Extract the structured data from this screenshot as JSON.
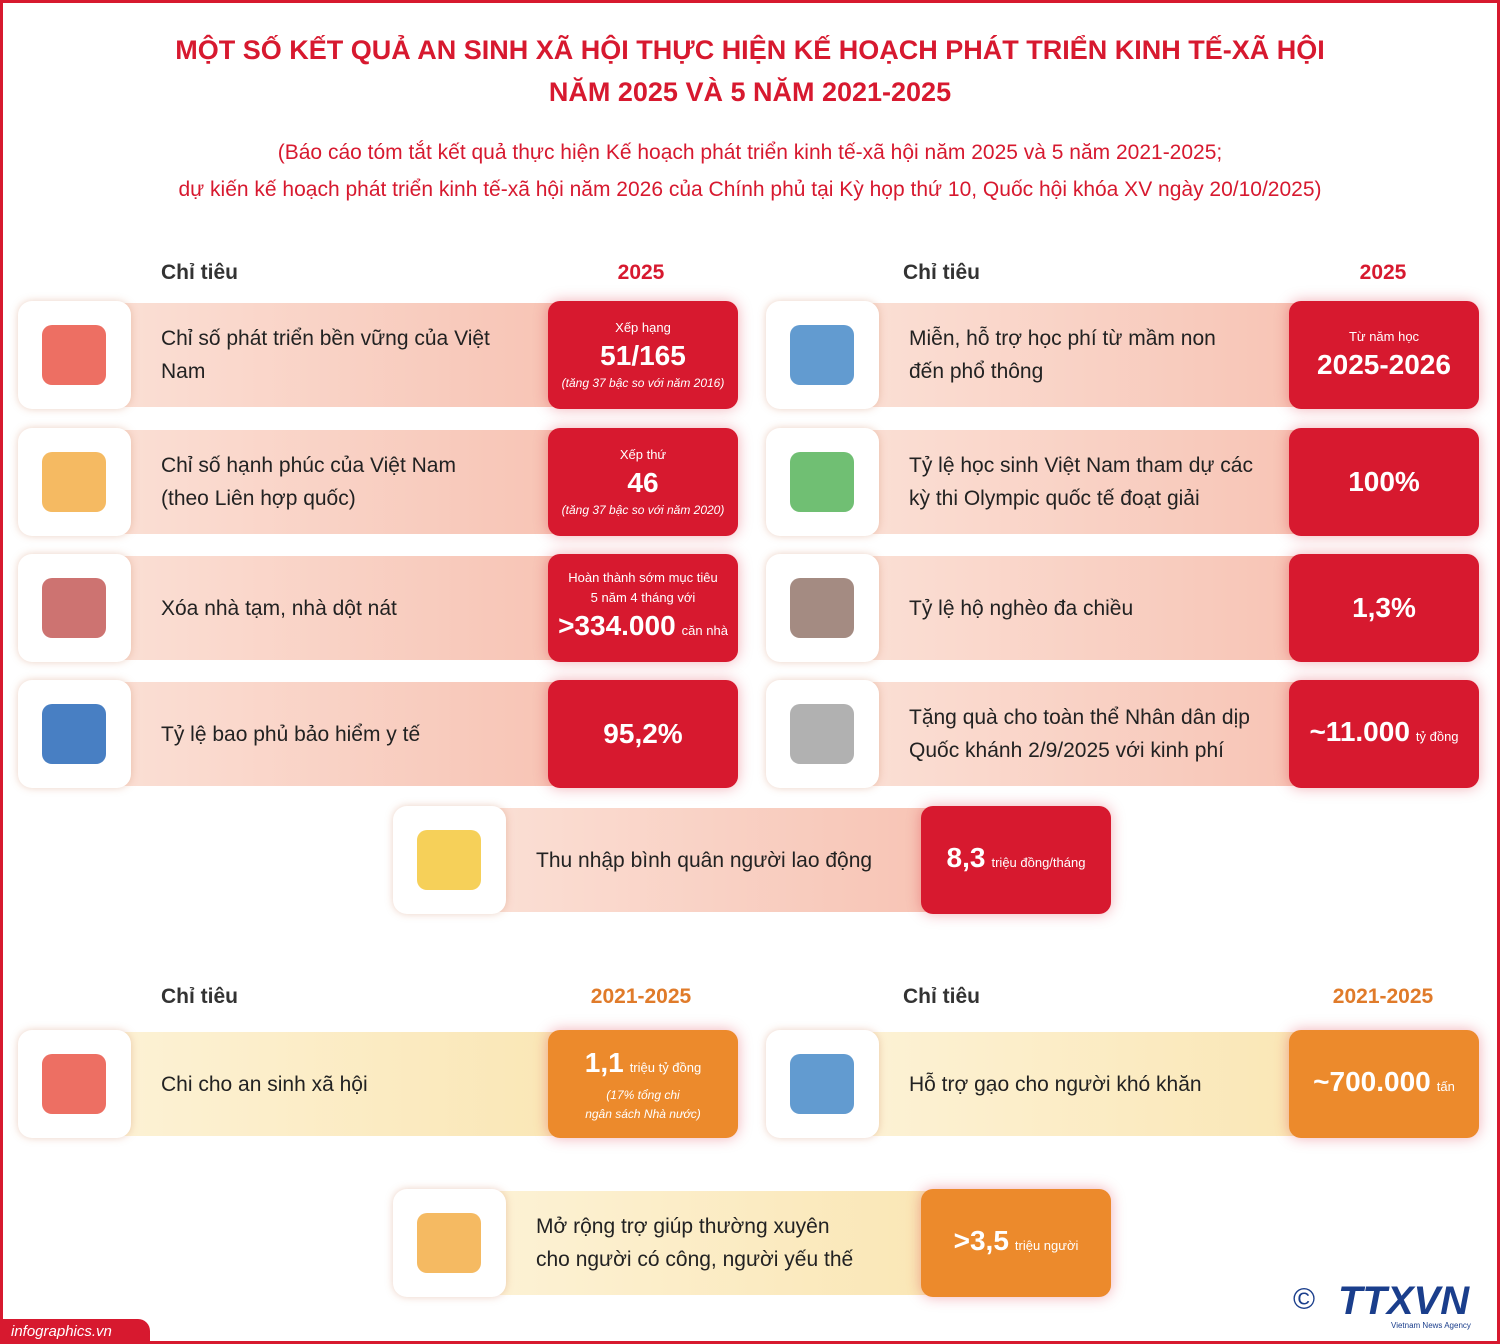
{
  "header": {
    "title_lines": [
      "MỘT SỐ KẾT QUẢ AN SINH XÃ HỘI THỰC HIỆN KẾ HOẠCH PHÁT TRIỂN KINH TẾ-XÃ HỘI",
      "NĂM 2025 VÀ 5 NĂM 2021-2025"
    ],
    "subtitle_lines": [
      "(Báo cáo tóm tắt kết quả thực hiện Kế hoạch phát triển kinh tế-xã hội năm 2025 và 5 năm 2021-2025;",
      "dự kiến kế hoạch phát triển kinh tế-xã hội năm 2026 của Chính phủ tại Kỳ họp thứ 10, Quốc hội khóa XV ngày 20/10/2025)"
    ]
  },
  "section1": {
    "column_label": "Chỉ tiêu",
    "period": "2025",
    "items": [
      {
        "label": [
          "Chỉ số phát triển bền vững của Việt Nam"
        ],
        "value": {
          "top": [
            "Xếp hạng"
          ],
          "main": "51/165",
          "note": [
            "(tăng 37 bậc so với năm 2016)"
          ]
        }
      },
      {
        "label": [
          "Miễn, hỗ trợ học phí từ mầm non",
          "đến phổ thông"
        ],
        "value": {
          "top": [
            "Từ năm học"
          ],
          "main": "2025-2026"
        }
      },
      {
        "label": [
          "Chỉ số hạnh phúc của Việt Nam",
          "(theo Liên hợp quốc)"
        ],
        "value": {
          "top": [
            "Xếp thứ"
          ],
          "main": "46",
          "note": [
            "(tăng 37 bậc so với năm 2020)"
          ]
        }
      },
      {
        "label": [
          "Tỷ lệ học sinh Việt Nam tham dự các",
          "kỳ thi Olympic quốc tế đoạt giải"
        ],
        "value": {
          "main": "100%"
        }
      },
      {
        "label": [
          "Xóa nhà tạm, nhà dột nát"
        ],
        "value": {
          "top": [
            "Hoàn thành sớm mục tiêu",
            "5 năm 4 tháng với"
          ],
          "main": ">334.000",
          "unit": "căn nhà"
        }
      },
      {
        "label": [
          "Tỷ lệ hộ nghèo đa chiều"
        ],
        "value": {
          "main": "1,3%"
        }
      },
      {
        "label": [
          "Tỷ lệ bao phủ bảo hiểm y tế"
        ],
        "value": {
          "main": "95,2%"
        }
      },
      {
        "label": [
          "Tặng quà cho toàn thể Nhân dân dịp",
          "Quốc khánh 2/9/2025 với kinh phí"
        ],
        "value": {
          "main": "~11.000",
          "unit": "tỷ đồng"
        }
      },
      {
        "label": [
          "Thu nhập bình quân người lao động"
        ],
        "value": {
          "main": "8,3",
          "unit": "triệu đồng/tháng"
        }
      }
    ]
  },
  "section2": {
    "column_label": "Chỉ tiêu",
    "period": "2021-2025",
    "items": [
      {
        "label": [
          "Chi cho an sinh xã hội"
        ],
        "value": {
          "main": "1,1",
          "unit": "triệu tỷ đồng",
          "note": [
            "(17% tổng chi",
            "ngân sách Nhà nước)"
          ]
        }
      },
      {
        "label": [
          "Hỗ trợ gạo cho người khó khăn"
        ],
        "value": {
          "main": "~700.000",
          "unit": "tấn"
        }
      },
      {
        "label": [
          "Mở rộng trợ giúp thường xuyên",
          "cho người có công, người yếu thế"
        ],
        "value": {
          "main": ">3,5",
          "unit": "triệu người"
        }
      }
    ]
  },
  "footer": {
    "site": "infographics.vn",
    "copyright": "©",
    "logo": "TTXVN",
    "agency": "Vietnam News Agency"
  }
}
